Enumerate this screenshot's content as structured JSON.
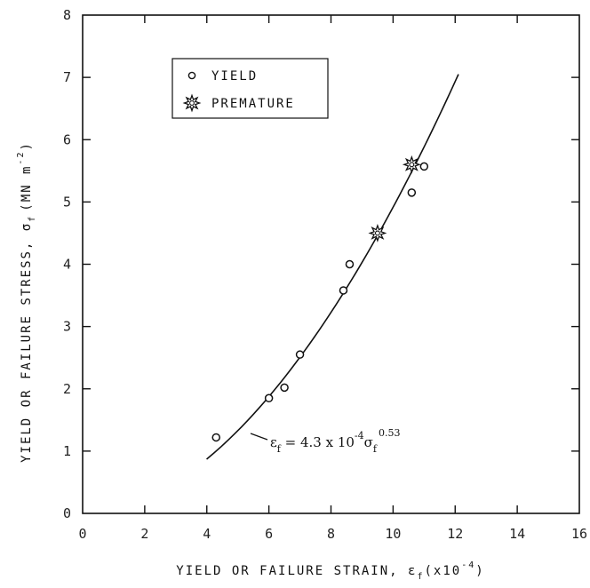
{
  "chart_data": {
    "type": "scatter",
    "xlabel": "YIELD OR FAILURE STRAIN, ε",
    "xlabel_sub": "f",
    "xlabel_unit": "(x10",
    "xlabel_unit_exp": "-4",
    "xlabel_unit_close": ")",
    "ylabel": "YIELD OR FAILURE STRESS, σ",
    "ylabel_sub": "f",
    "ylabel_unit": "(MN m",
    "ylabel_unit_exp": "-2",
    "ylabel_unit_close": ")",
    "xlim": [
      0,
      16
    ],
    "ylim": [
      0,
      8
    ],
    "x_ticks": [
      0,
      2,
      4,
      6,
      8,
      10,
      12,
      14,
      16
    ],
    "y_ticks": [
      0,
      1,
      2,
      3,
      4,
      5,
      6,
      7,
      8
    ],
    "x_tick_labels": [
      "0",
      "2",
      "4",
      "6",
      "8",
      "10",
      "12",
      "14",
      "16"
    ],
    "y_tick_labels": [
      "0",
      "1",
      "2",
      "3",
      "4",
      "5",
      "6",
      "7",
      "8"
    ],
    "legend_position": "top-left",
    "series": [
      {
        "name": "YIELD",
        "marker": "circle",
        "x": [
          4.3,
          6.0,
          6.5,
          7.0,
          8.4,
          8.6,
          10.6,
          10.6,
          11.0
        ],
        "y": [
          1.22,
          1.85,
          2.02,
          2.55,
          3.58,
          4.0,
          5.6,
          5.15,
          5.57
        ]
      },
      {
        "name": "PREMATURE",
        "marker": "star",
        "x": [
          9.5,
          10.6
        ],
        "y": [
          4.5,
          5.6
        ]
      }
    ],
    "fit_curve": {
      "equation_lhs": "ε",
      "equation_lhs_sub": "f",
      "equation_mid": " = 4.3 x 10",
      "equation_mid_exp": "-4",
      "equation_sigma": "σ",
      "equation_sigma_sub": "f",
      "equation_exp": "0.53",
      "coefficient": 4.3,
      "exponent": 0.53,
      "sigma_range": [
        0.87,
        7.05
      ]
    }
  }
}
